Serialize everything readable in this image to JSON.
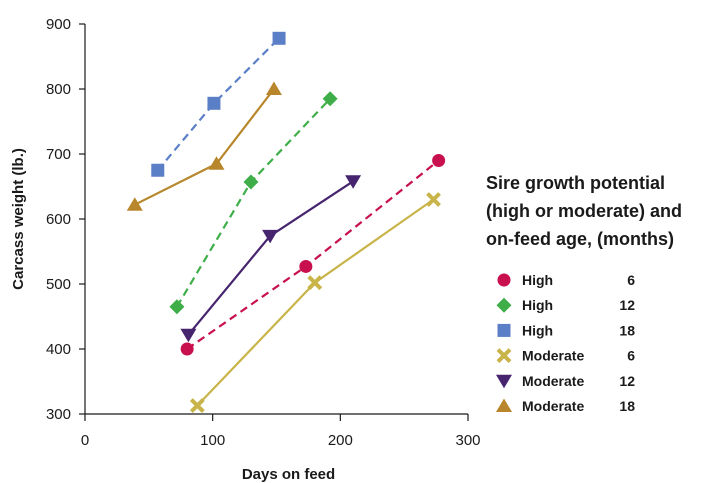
{
  "chart_data": {
    "type": "line",
    "xlabel": "Days on feed",
    "ylabel": "Carcass weight (lb.)",
    "xlim": [
      0,
      300
    ],
    "ylim": [
      300,
      900
    ],
    "x_ticks": [
      "0",
      "100",
      "200",
      "300"
    ],
    "y_ticks": [
      "300",
      "400",
      "500",
      "600",
      "700",
      "800",
      "900"
    ],
    "grid": false,
    "legend_position": "right",
    "legend_title": [
      "Sire growth potential",
      "(high or moderate) and",
      "on-feed age, (months)"
    ],
    "series": [
      {
        "name": "High",
        "age": "6",
        "color": "#c8104e",
        "marker": "circle",
        "dashed": true,
        "x": [
          80,
          173,
          277
        ],
        "y": [
          400,
          527,
          690
        ]
      },
      {
        "name": "High",
        "age": "12",
        "color": "#3fae49",
        "marker": "diamond",
        "dashed": true,
        "x": [
          72,
          130,
          192
        ],
        "y": [
          465,
          657,
          785
        ]
      },
      {
        "name": "High",
        "age": "18",
        "color": "#5b7fc7",
        "marker": "square",
        "dashed": true,
        "x": [
          57,
          101,
          152
        ],
        "y": [
          675,
          778,
          878
        ]
      },
      {
        "name": "Moderate",
        "age": "6",
        "color": "#c8b448",
        "marker": "x",
        "dashed": false,
        "x": [
          88,
          180,
          273
        ],
        "y": [
          313,
          502,
          630
        ]
      },
      {
        "name": "Moderate",
        "age": "12",
        "color": "#46246e",
        "marker": "triangle-down",
        "dashed": false,
        "x": [
          81,
          145,
          210
        ],
        "y": [
          422,
          574,
          658
        ]
      },
      {
        "name": "Moderate",
        "age": "18",
        "color": "#b8862b",
        "marker": "triangle-up",
        "dashed": false,
        "x": [
          39,
          103,
          148
        ],
        "y": [
          622,
          685,
          800
        ]
      }
    ]
  }
}
